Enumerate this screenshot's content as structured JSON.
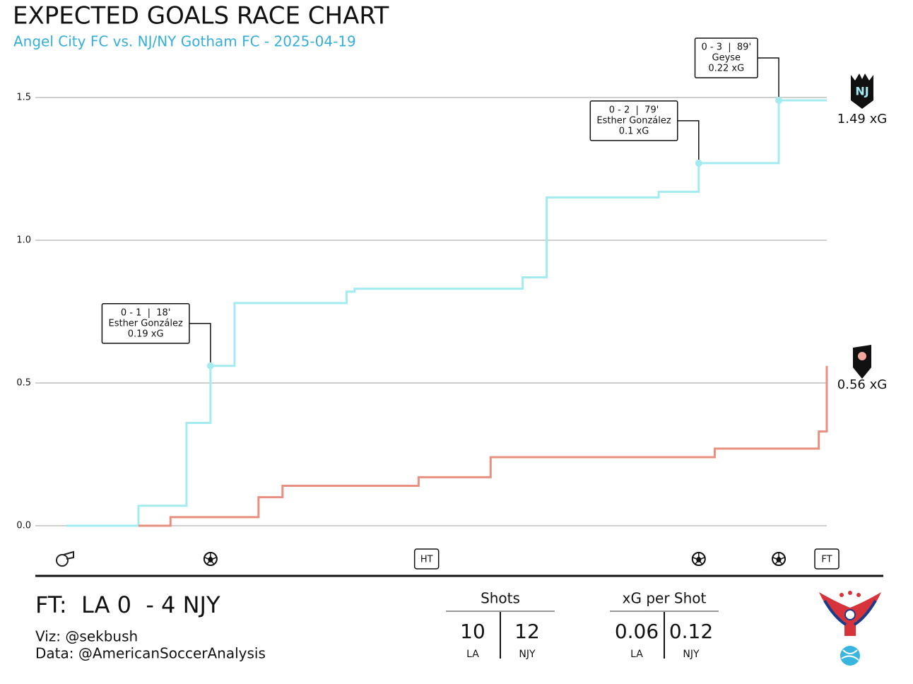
{
  "chart_data": {
    "type": "step",
    "title": "EXPECTED GOALS RACE CHART",
    "subtitle": "Angel City FC vs. NJ/NY Gotham FC - 2025-04-19",
    "xlim": [
      0,
      95
    ],
    "ylim": [
      0,
      1.5
    ],
    "yticks": [
      {
        "value": 0,
        "label": "0.0"
      },
      0.5,
      {
        "value": 1,
        "label": "1.0"
      },
      1.5
    ],
    "grid": true,
    "series": [
      {
        "name": "NJY",
        "color": "#a3ebf0",
        "end_label": "1.49 xG",
        "x": [
          0,
          9,
          15,
          18,
          21,
          35,
          36,
          57,
          60,
          74,
          79,
          89,
          95
        ],
        "values": [
          0,
          0.07,
          0.36,
          0.56,
          0.78,
          0.82,
          0.83,
          0.87,
          1.15,
          1.17,
          1.27,
          1.49,
          1.49
        ]
      },
      {
        "name": "LA",
        "color": "#e8907f",
        "end_label": "0.56 xG",
        "x": [
          9,
          13,
          24,
          27,
          44,
          53,
          81,
          94,
          95
        ],
        "values": [
          0,
          0.03,
          0.1,
          0.14,
          0.17,
          0.24,
          0.27,
          0.33,
          0.56
        ]
      }
    ],
    "goals": [
      {
        "x": 18,
        "value": 0.56,
        "score": "0 - 1  |  18'",
        "player": "Esther González",
        "xg": "0.19 xG"
      },
      {
        "x": 79,
        "value": 1.27,
        "score": "0 - 2  |  79'",
        "player": "Esther González",
        "xg": "0.1 xG"
      },
      {
        "x": 89,
        "value": 1.49,
        "score": "0 - 3  |  89'",
        "player": "Geyse",
        "xg": "0.22 xG"
      }
    ],
    "markers": [
      {
        "x": 45,
        "label": "HT"
      },
      {
        "x": 95,
        "label": "FT"
      }
    ]
  },
  "footer": {
    "result": "FT:  LA 0  - 4 NJY",
    "viz": "Viz: @sekbush",
    "data": "Data: @AmericanSoccerAnalysis",
    "stats": [
      {
        "title": "Shots",
        "LA": "10",
        "NJY": "12"
      },
      {
        "title": "xG per Shot",
        "LA": "0.06",
        "NJY": "0.12"
      }
    ]
  }
}
